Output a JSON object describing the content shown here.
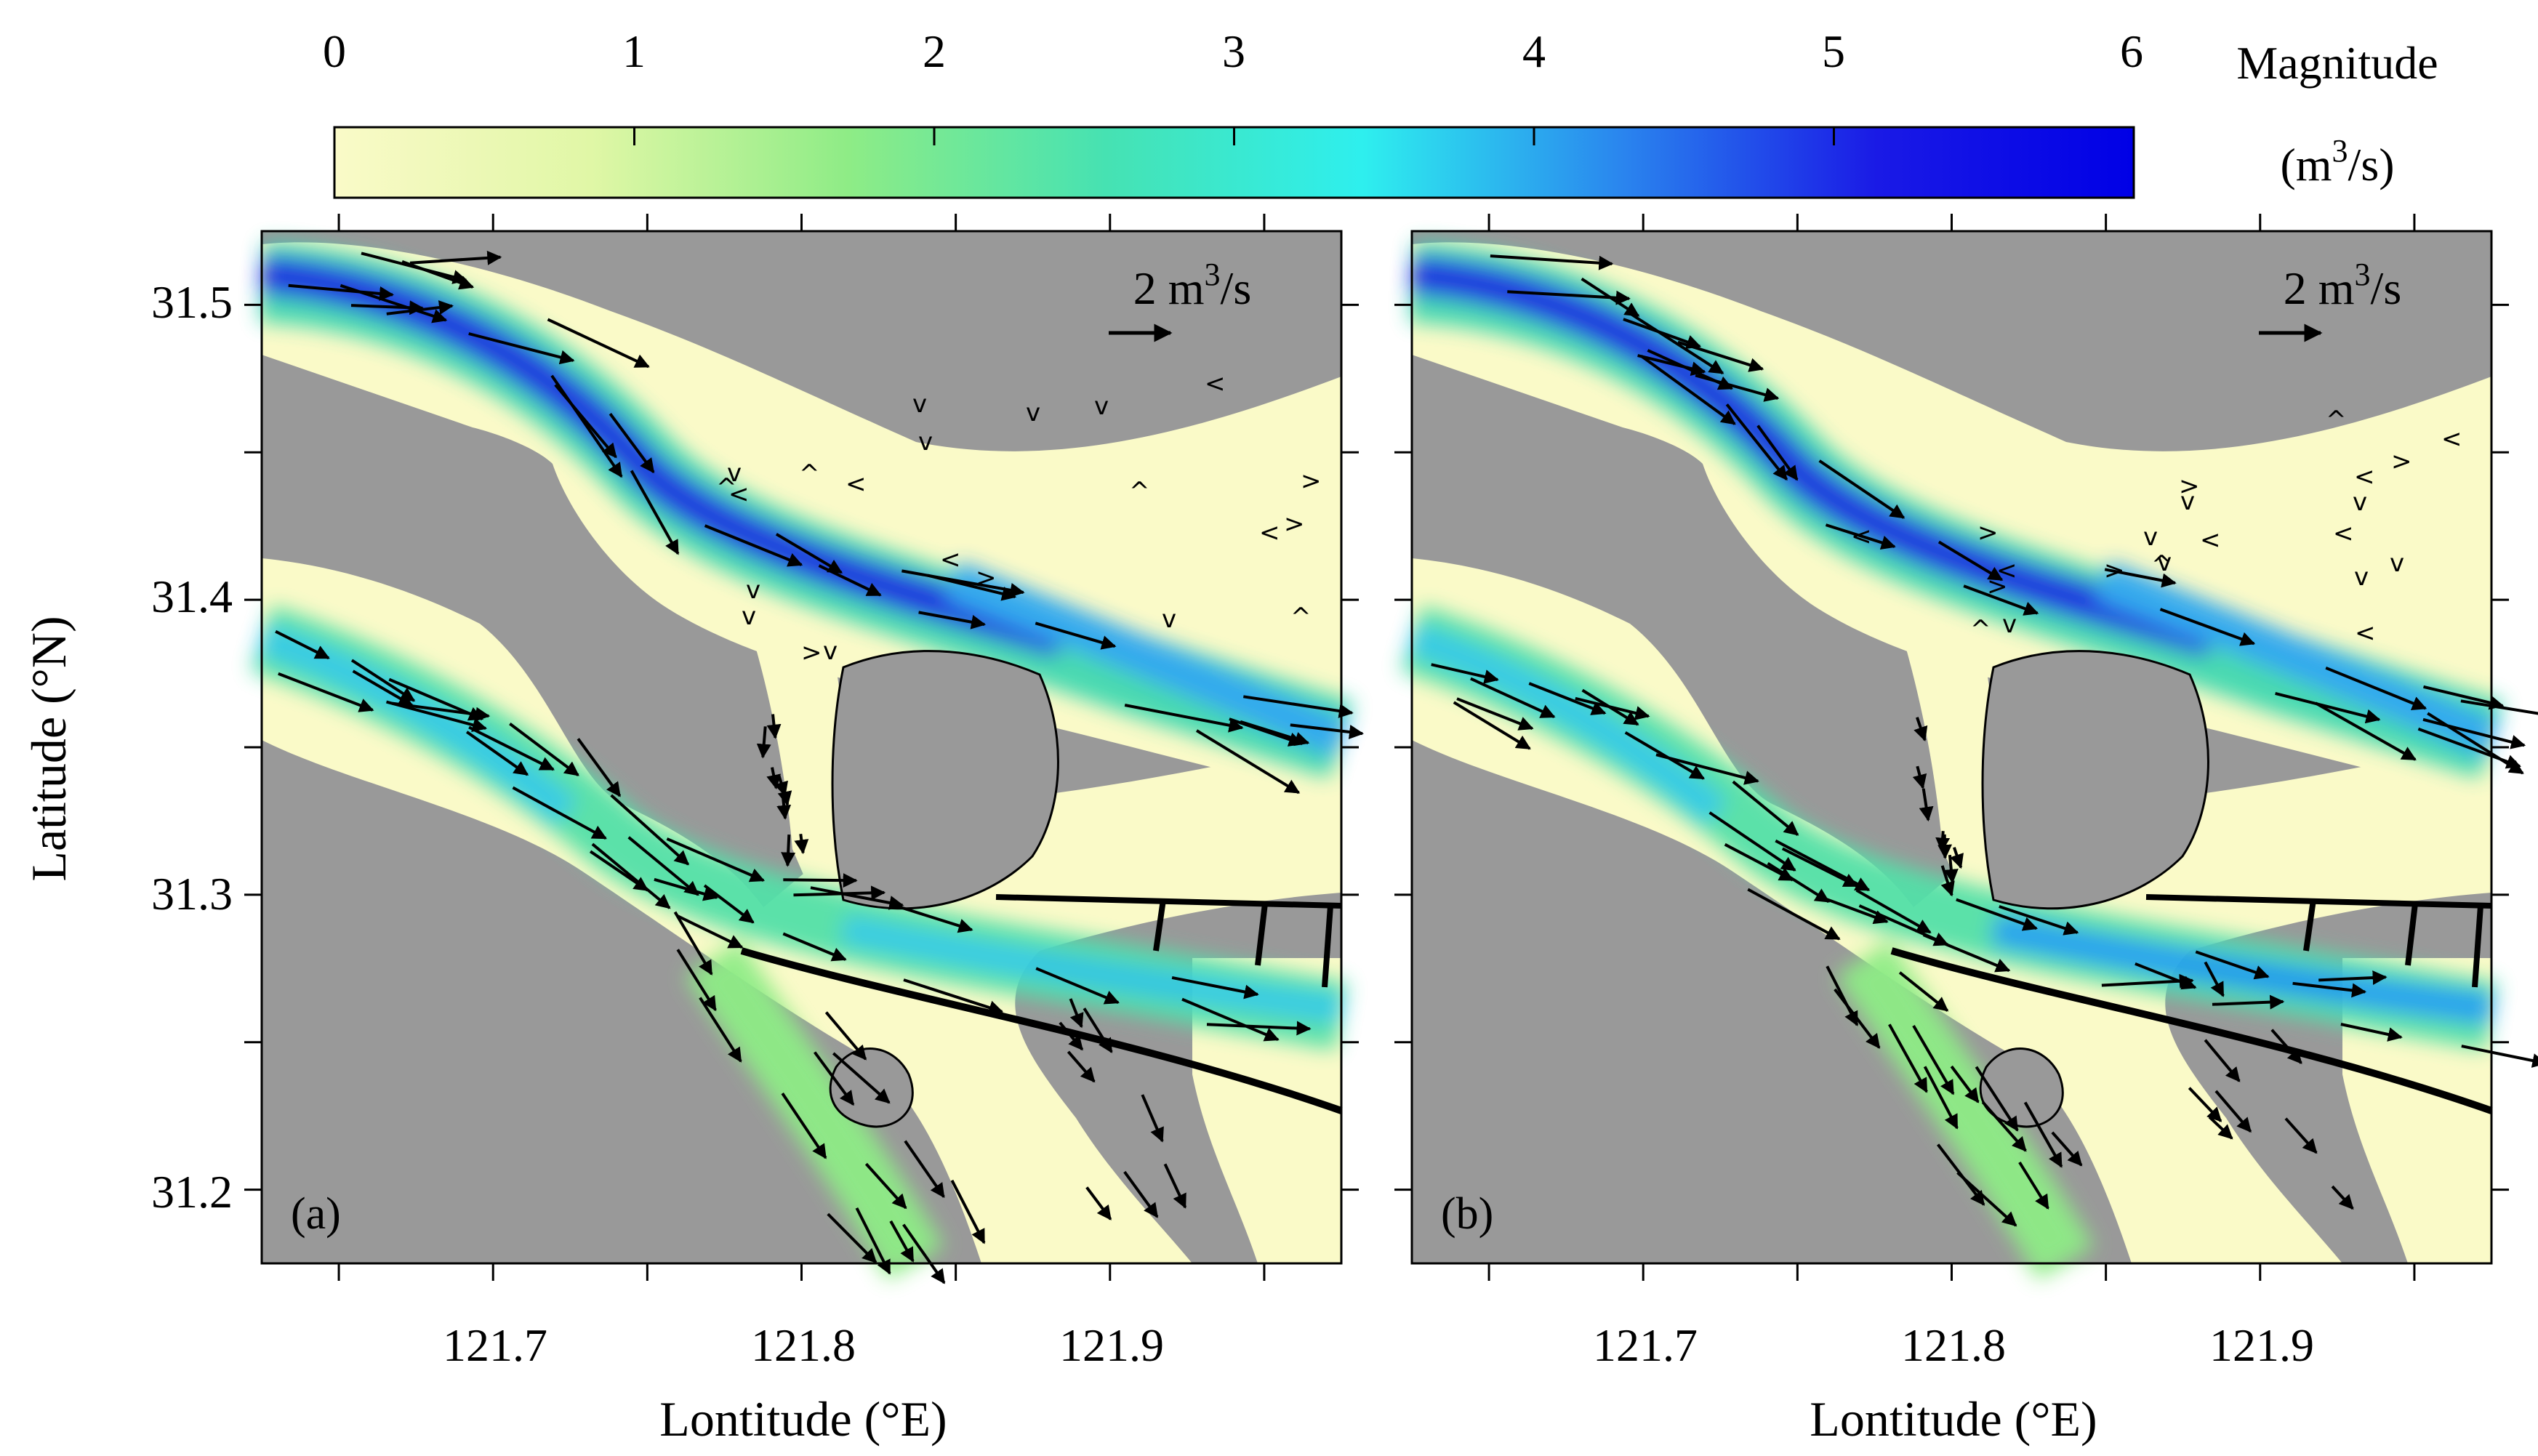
{
  "colorbar": {
    "ticks": [
      "0",
      "1",
      "2",
      "3",
      "4",
      "5",
      "6"
    ],
    "title_line1": "Magnitude",
    "title_line2_base": "(m",
    "title_line2_sup": "3",
    "title_line2_end": "/s)",
    "range": [
      0,
      6
    ],
    "colors": [
      "#fafac8",
      "#e0f7a6",
      "#8eec86",
      "#46e2b2",
      "#2eefee",
      "#2a86ee",
      "#1a1ae6",
      "#0000e6"
    ]
  },
  "axes": {
    "xlabel": "Lontitude (°E)",
    "ylabel": "Latitude (°N)",
    "x_ticks": [
      "121.7",
      "121.8",
      "121.9"
    ],
    "y_ticks": [
      "31.5",
      "31.4",
      "31.3",
      "31.2"
    ],
    "xlim": [
      121.625,
      121.975
    ],
    "ylim": [
      31.175,
      31.525
    ]
  },
  "panels": [
    {
      "label": "(a)",
      "scale_base": "2 m",
      "scale_sup": "3",
      "scale_end": "/s"
    },
    {
      "label": "(b)",
      "scale_base": "2 m",
      "scale_sup": "3",
      "scale_end": "/s"
    }
  ],
  "colors": {
    "land": "#999999",
    "water": "#fafac8",
    "frame": "#000000"
  }
}
